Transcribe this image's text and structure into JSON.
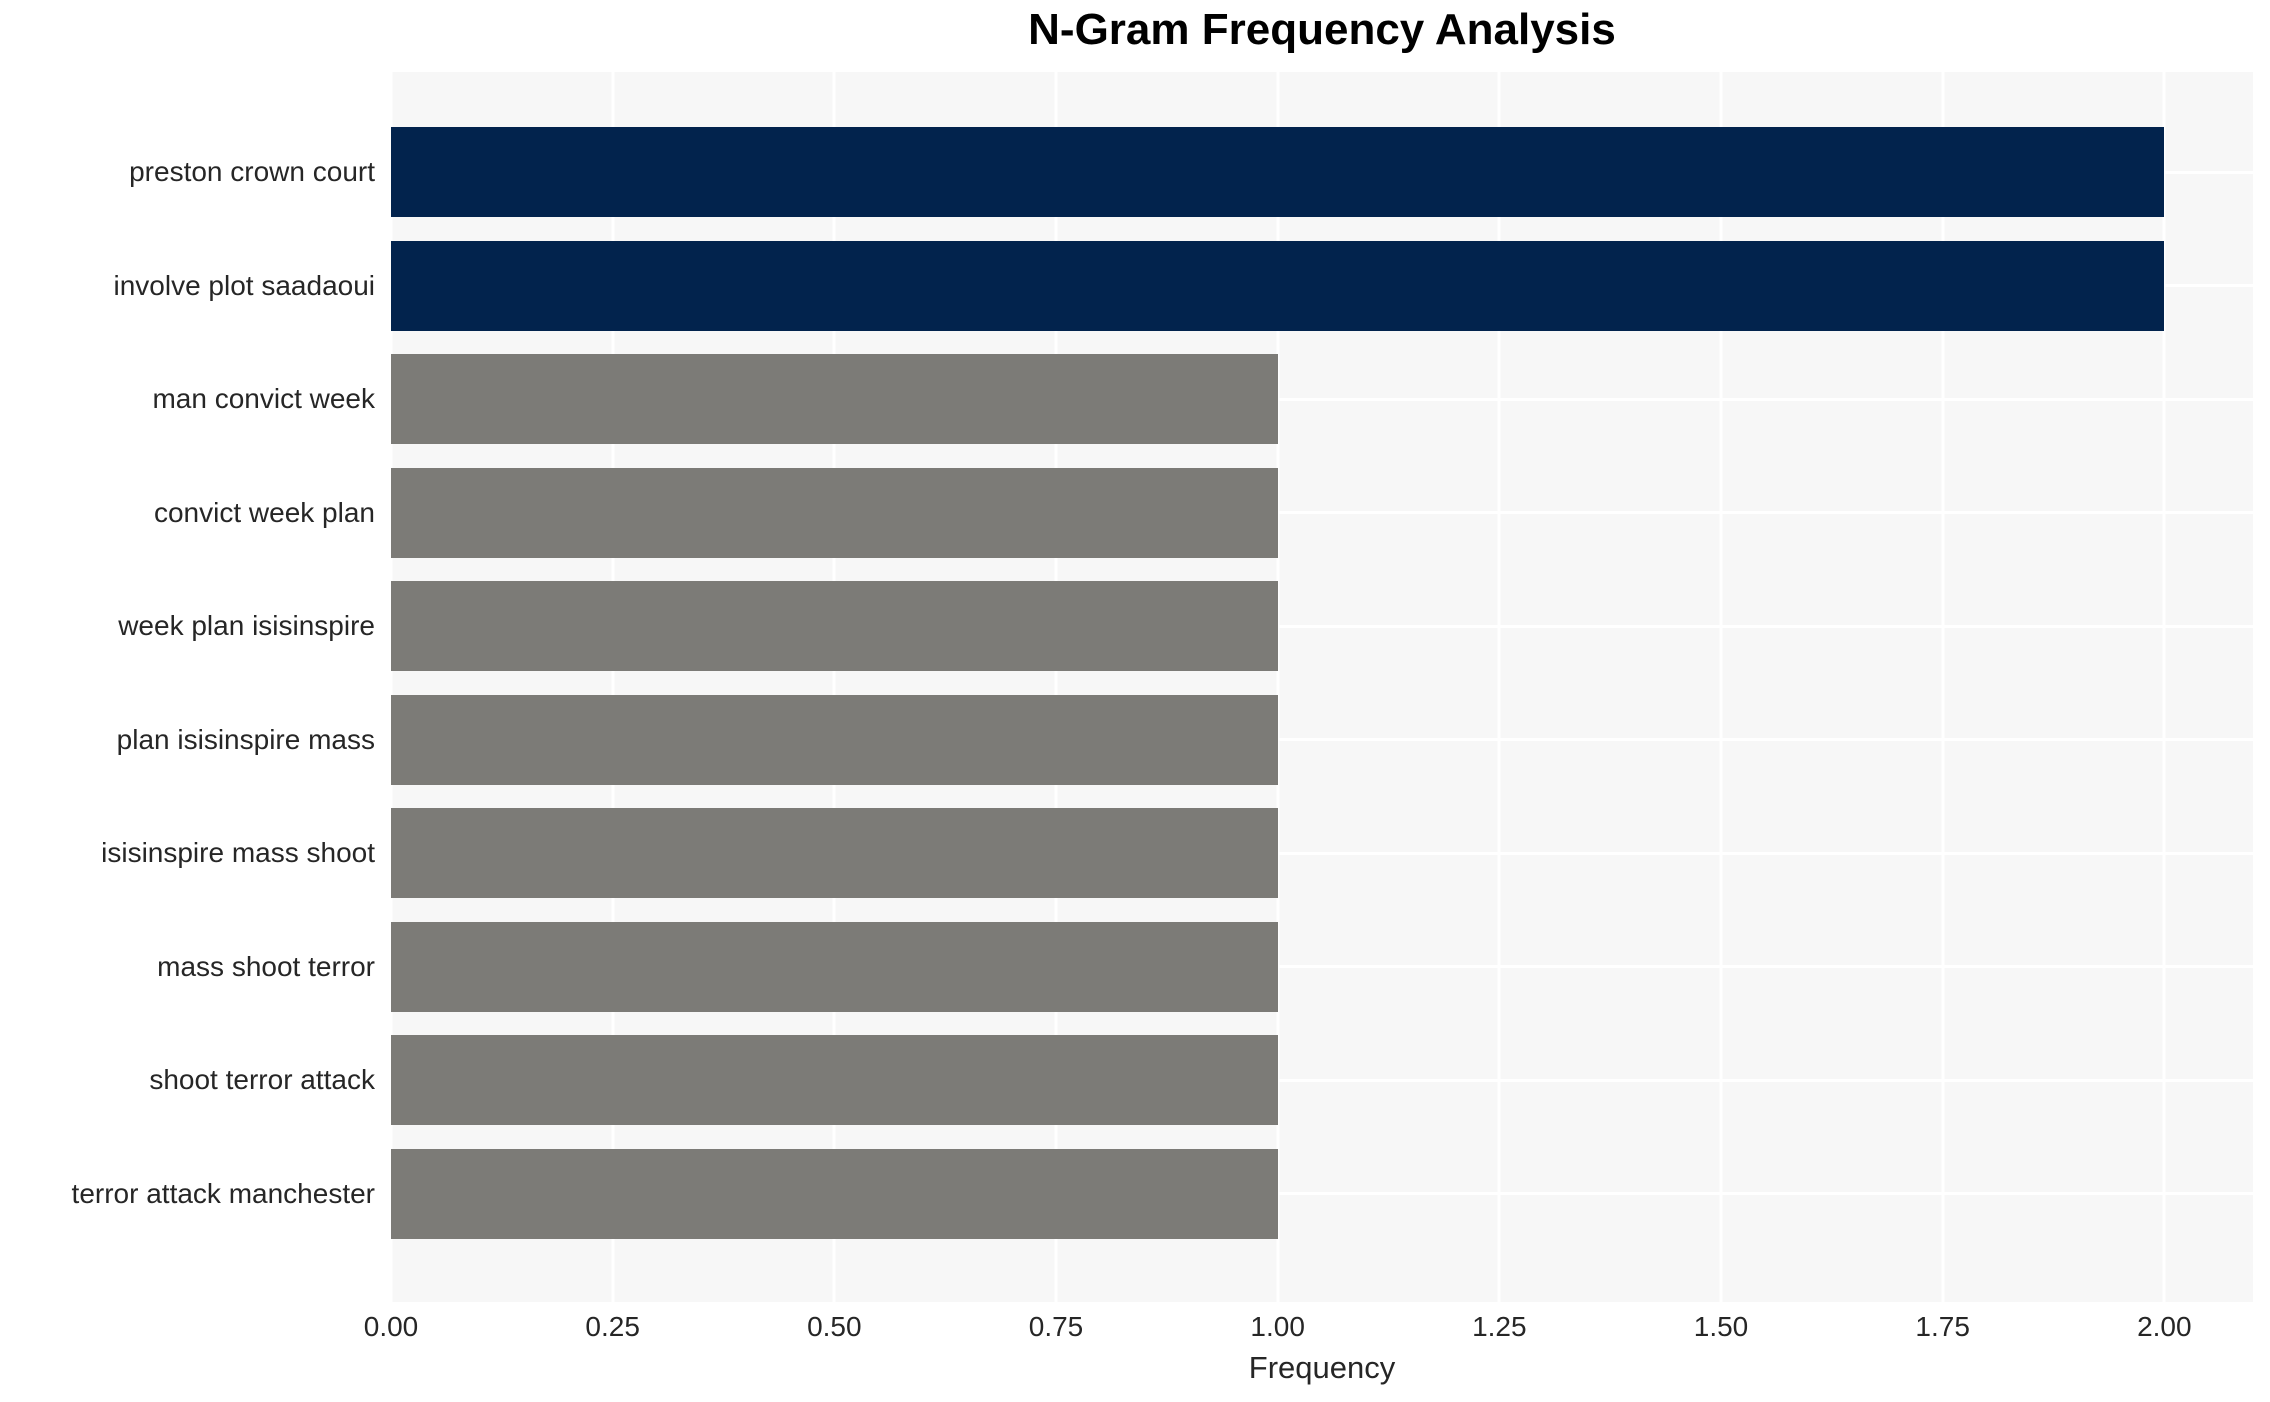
{
  "chart_data": {
    "type": "bar",
    "orientation": "horizontal",
    "title": "N-Gram Frequency Analysis",
    "xlabel": "Frequency",
    "ylabel": "",
    "categories": [
      "preston crown court",
      "involve plot saadaoui",
      "man convict week",
      "convict week plan",
      "week plan isisinspire",
      "plan isisinspire mass",
      "isisinspire mass shoot",
      "mass shoot terror",
      "shoot terror attack",
      "terror attack manchester"
    ],
    "values": [
      2,
      2,
      1,
      1,
      1,
      1,
      1,
      1,
      1,
      1
    ],
    "bar_colors": [
      "#02234d",
      "#02234d",
      "#7c7b77",
      "#7c7b77",
      "#7c7b77",
      "#7c7b77",
      "#7c7b77",
      "#7c7b77",
      "#7c7b77",
      "#7c7b77"
    ],
    "xlim": [
      0,
      2.1
    ],
    "xticks": [
      0,
      0.25,
      0.5,
      0.75,
      1.0,
      1.25,
      1.5,
      1.75,
      2.0
    ],
    "xtick_labels": [
      "0.00",
      "0.25",
      "0.50",
      "0.75",
      "1.00",
      "1.25",
      "1.50",
      "1.75",
      "2.00"
    ],
    "grid": true,
    "legend": false,
    "colors": {
      "plot_background": "#f7f7f7",
      "figure_background": "#ffffff",
      "grid": "#ffffff",
      "tick_text": "#262626",
      "title_text": "#000000",
      "bar_high": "#02234d",
      "bar_low": "#7c7b77"
    }
  }
}
